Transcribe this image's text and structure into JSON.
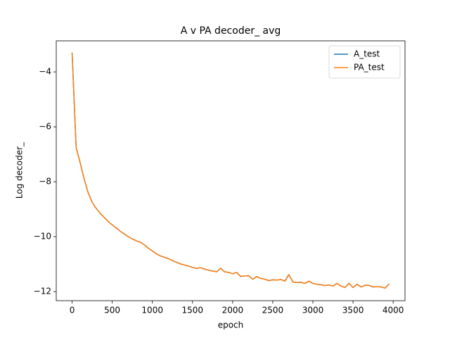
{
  "chart_data": {
    "type": "line",
    "title": "A v PA decoder_ avg",
    "xlabel": "epoch",
    "ylabel": "Log decoder_",
    "x": [
      0,
      50,
      100,
      150,
      200,
      250,
      300,
      350,
      400,
      450,
      500,
      550,
      600,
      650,
      700,
      750,
      800,
      850,
      900,
      950,
      1000,
      1050,
      1100,
      1150,
      1200,
      1250,
      1300,
      1350,
      1400,
      1450,
      1500,
      1550,
      1600,
      1650,
      1700,
      1750,
      1800,
      1850,
      1900,
      1950,
      2000,
      2050,
      2100,
      2150,
      2200,
      2250,
      2300,
      2350,
      2400,
      2450,
      2500,
      2550,
      2600,
      2650,
      2700,
      2750,
      2800,
      2850,
      2900,
      2950,
      3000,
      3050,
      3100,
      3150,
      3200,
      3250,
      3300,
      3350,
      3400,
      3450,
      3500,
      3550,
      3600,
      3650,
      3700,
      3750,
      3800,
      3850,
      3900,
      3950
    ],
    "series": [
      {
        "name": "A_test",
        "color": "#1f77b4",
        "values": [
          -3.3,
          -6.75,
          -7.3,
          -7.9,
          -8.4,
          -8.75,
          -8.97,
          -9.15,
          -9.3,
          -9.45,
          -9.57,
          -9.68,
          -9.8,
          -9.9,
          -10.0,
          -10.08,
          -10.15,
          -10.2,
          -10.3,
          -10.42,
          -10.52,
          -10.62,
          -10.7,
          -10.75,
          -10.8,
          -10.87,
          -10.93,
          -10.99,
          -11.03,
          -11.07,
          -11.12,
          -11.15,
          -11.13,
          -11.18,
          -11.22,
          -11.25,
          -11.28,
          -11.15,
          -11.28,
          -11.3,
          -11.35,
          -11.3,
          -11.45,
          -11.43,
          -11.42,
          -11.55,
          -11.45,
          -11.52,
          -11.55,
          -11.6,
          -11.57,
          -11.58,
          -11.56,
          -11.62,
          -11.38,
          -11.65,
          -11.67,
          -11.66,
          -11.7,
          -11.62,
          -11.7,
          -11.73,
          -11.75,
          -11.78,
          -11.76,
          -11.8,
          -11.7,
          -11.8,
          -11.85,
          -11.7,
          -11.85,
          -11.73,
          -11.83,
          -11.77,
          -11.77,
          -11.83,
          -11.82,
          -11.83,
          -11.87,
          -11.72
        ]
      },
      {
        "name": "PA_test",
        "color": "#ff7f0e",
        "values": [
          -3.3,
          -6.75,
          -7.3,
          -7.9,
          -8.4,
          -8.75,
          -8.97,
          -9.15,
          -9.3,
          -9.45,
          -9.57,
          -9.68,
          -9.8,
          -9.9,
          -10.0,
          -10.08,
          -10.15,
          -10.2,
          -10.3,
          -10.42,
          -10.52,
          -10.62,
          -10.7,
          -10.75,
          -10.8,
          -10.87,
          -10.93,
          -10.99,
          -11.03,
          -11.07,
          -11.12,
          -11.15,
          -11.13,
          -11.18,
          -11.22,
          -11.25,
          -11.28,
          -11.15,
          -11.28,
          -11.3,
          -11.35,
          -11.3,
          -11.45,
          -11.43,
          -11.42,
          -11.55,
          -11.45,
          -11.52,
          -11.55,
          -11.6,
          -11.57,
          -11.58,
          -11.56,
          -11.62,
          -11.38,
          -11.65,
          -11.67,
          -11.66,
          -11.7,
          -11.62,
          -11.7,
          -11.73,
          -11.75,
          -11.78,
          -11.76,
          -11.8,
          -11.7,
          -11.8,
          -11.85,
          -11.7,
          -11.85,
          -11.73,
          -11.83,
          -11.77,
          -11.77,
          -11.83,
          -11.82,
          -11.83,
          -11.87,
          -11.72
        ]
      }
    ],
    "xlim": [
      -197.5,
      4147.5
    ],
    "xticks": [
      0,
      500,
      1000,
      1500,
      2000,
      2500,
      3000,
      3500,
      4000
    ],
    "ylim": [
      -12.33,
      -2.87
    ],
    "yticks": [
      {
        "value": -4,
        "label": "−4"
      },
      {
        "value": -6,
        "label": "−6"
      },
      {
        "value": -8,
        "label": "−8"
      },
      {
        "value": -10,
        "label": "−10"
      },
      {
        "value": -12,
        "label": "−12"
      }
    ],
    "grid": false,
    "legend": "upper right"
  }
}
